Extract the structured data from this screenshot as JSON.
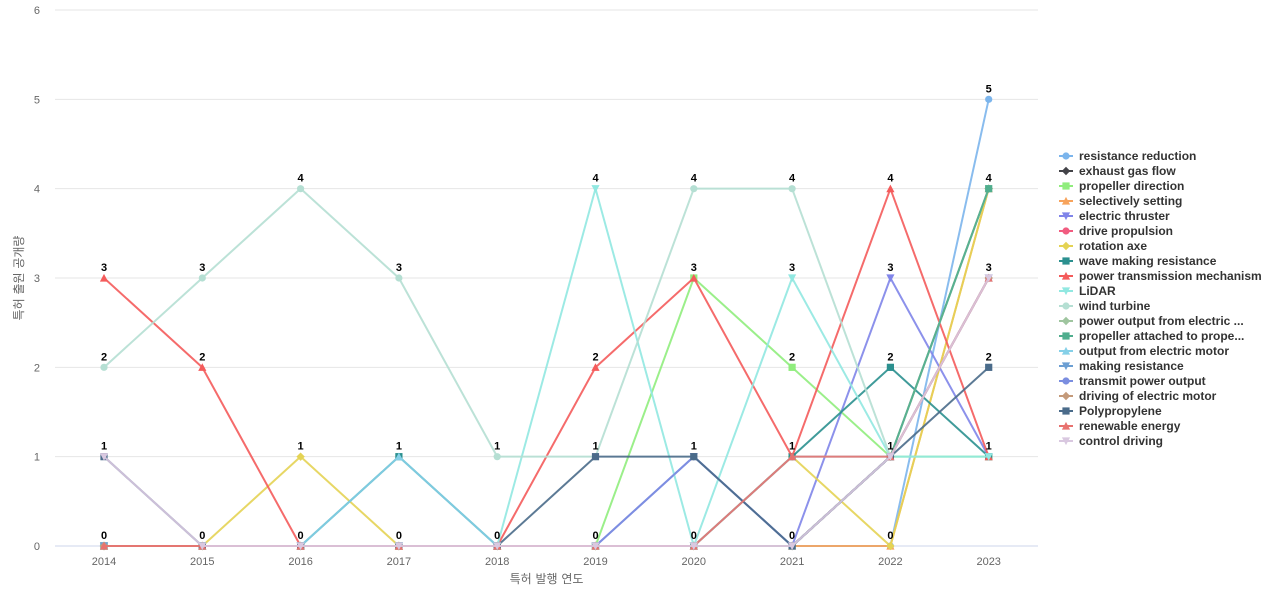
{
  "chart_data": {
    "type": "line",
    "x": [
      "2014",
      "2015",
      "2016",
      "2017",
      "2018",
      "2019",
      "2020",
      "2021",
      "2022",
      "2023"
    ],
    "xlabel": "특허 발행 연도",
    "ylabel": "특허 출원 공개량",
    "ylim": [
      0,
      6
    ],
    "yticks": [
      "0",
      "1",
      "2",
      "3",
      "4",
      "5",
      "6"
    ],
    "grid": true,
    "legend_position": "right",
    "series": [
      {
        "name": "resistance reduction",
        "color": "#7cb5ec",
        "marker": "circle",
        "values": [
          0,
          0,
          0,
          0,
          0,
          0,
          0,
          0,
          0,
          5
        ]
      },
      {
        "name": "exhaust gas flow",
        "color": "#434348",
        "marker": "diamond",
        "values": [
          0,
          0,
          0,
          0,
          0,
          0,
          0,
          0,
          1,
          4
        ]
      },
      {
        "name": "propeller direction",
        "color": "#90ed7d",
        "marker": "square",
        "values": [
          0,
          0,
          0,
          0,
          0,
          0,
          3,
          2,
          1,
          1
        ]
      },
      {
        "name": "selectively setting",
        "color": "#f7a35c",
        "marker": "triangle",
        "values": [
          0,
          0,
          0,
          0,
          0,
          0,
          0,
          0,
          0,
          4
        ]
      },
      {
        "name": "electric thruster",
        "color": "#8085e9",
        "marker": "triangle-down",
        "values": [
          0,
          0,
          0,
          0,
          0,
          0,
          1,
          0,
          3,
          1
        ]
      },
      {
        "name": "drive propulsion",
        "color": "#f15c80",
        "marker": "circle",
        "values": [
          0,
          0,
          0,
          0,
          0,
          0,
          0,
          0,
          1,
          3
        ]
      },
      {
        "name": "rotation axe",
        "color": "#e4d354",
        "marker": "diamond",
        "values": [
          0,
          0,
          1,
          0,
          0,
          0,
          0,
          1,
          0,
          4
        ]
      },
      {
        "name": "wave making resistance",
        "color": "#2b908f",
        "marker": "square",
        "values": [
          0,
          0,
          0,
          1,
          0,
          0,
          0,
          1,
          2,
          1
        ]
      },
      {
        "name": "power transmission mechanism",
        "color": "#f45b5b",
        "marker": "triangle",
        "values": [
          3,
          2,
          0,
          0,
          0,
          2,
          3,
          1,
          4,
          1
        ]
      },
      {
        "name": "LiDAR",
        "color": "#91e8e1",
        "marker": "triangle-down",
        "values": [
          0,
          0,
          0,
          0,
          0,
          4,
          0,
          3,
          1,
          1
        ]
      },
      {
        "name": "wind turbine",
        "color": "#b5dfd3",
        "marker": "circle",
        "values": [
          2,
          3,
          4,
          3,
          1,
          1,
          4,
          4,
          1,
          4
        ]
      },
      {
        "name": "power output from electric ...",
        "color": "#9fc59f",
        "marker": "diamond",
        "values": [
          0,
          0,
          0,
          0,
          0,
          0,
          0,
          0,
          1,
          4
        ]
      },
      {
        "name": "propeller attached to prope...",
        "color": "#50ae8e",
        "marker": "square",
        "values": [
          0,
          0,
          0,
          0,
          0,
          0,
          0,
          0,
          1,
          4
        ]
      },
      {
        "name": "output from electric motor",
        "color": "#85d0e8",
        "marker": "triangle",
        "values": [
          0,
          0,
          0,
          1,
          0,
          0,
          0,
          1,
          1,
          3
        ]
      },
      {
        "name": "making resistance",
        "color": "#6c9fd3",
        "marker": "triangle-down",
        "values": [
          0,
          0,
          0,
          0,
          0,
          0,
          0,
          0,
          1,
          3
        ]
      },
      {
        "name": "transmit power output",
        "color": "#7b8ee0",
        "marker": "circle",
        "values": [
          0,
          0,
          0,
          0,
          0,
          0,
          1,
          0,
          1,
          3
        ]
      },
      {
        "name": "driving of electric motor",
        "color": "#c49a7a",
        "marker": "diamond",
        "values": [
          0,
          0,
          0,
          0,
          0,
          0,
          0,
          0,
          1,
          3
        ]
      },
      {
        "name": "Polypropylene",
        "color": "#4a6b8a",
        "marker": "square",
        "values": [
          1,
          0,
          0,
          0,
          0,
          1,
          1,
          0,
          1,
          2
        ]
      },
      {
        "name": "renewable energy",
        "color": "#e8726f",
        "marker": "triangle",
        "values": [
          0,
          0,
          0,
          0,
          0,
          0,
          0,
          1,
          1,
          3
        ]
      },
      {
        "name": "control driving",
        "color": "#d9c8e0",
        "marker": "triangle-down",
        "values": [
          1,
          0,
          0,
          0,
          0,
          0,
          0,
          0,
          1,
          3
        ]
      }
    ],
    "data_labels": [
      {
        "x": "2014",
        "y": 3,
        "text": "3"
      },
      {
        "x": "2014",
        "y": 2,
        "text": "2"
      },
      {
        "x": "2014",
        "y": 1,
        "text": "1"
      },
      {
        "x": "2014",
        "y": 0,
        "text": "0"
      },
      {
        "x": "2015",
        "y": 3,
        "text": "3"
      },
      {
        "x": "2015",
        "y": 2,
        "text": "2"
      },
      {
        "x": "2015",
        "y": 0,
        "text": "0"
      },
      {
        "x": "2016",
        "y": 4,
        "text": "4"
      },
      {
        "x": "2016",
        "y": 1,
        "text": "1"
      },
      {
        "x": "2016",
        "y": 0,
        "text": "0"
      },
      {
        "x": "2017",
        "y": 3,
        "text": "3"
      },
      {
        "x": "2017",
        "y": 1,
        "text": "1"
      },
      {
        "x": "2017",
        "y": 0,
        "text": "0"
      },
      {
        "x": "2018",
        "y": 1,
        "text": "1"
      },
      {
        "x": "2018",
        "y": 0,
        "text": "0"
      },
      {
        "x": "2019",
        "y": 4,
        "text": "4"
      },
      {
        "x": "2019",
        "y": 2,
        "text": "2"
      },
      {
        "x": "2019",
        "y": 1,
        "text": "1"
      },
      {
        "x": "2019",
        "y": 0,
        "text": "0"
      },
      {
        "x": "2020",
        "y": 4,
        "text": "4"
      },
      {
        "x": "2020",
        "y": 3,
        "text": "3"
      },
      {
        "x": "2020",
        "y": 1,
        "text": "1"
      },
      {
        "x": "2020",
        "y": 0,
        "text": "0"
      },
      {
        "x": "2021",
        "y": 4,
        "text": "4"
      },
      {
        "x": "2021",
        "y": 3,
        "text": "3"
      },
      {
        "x": "2021",
        "y": 2,
        "text": "2"
      },
      {
        "x": "2021",
        "y": 1,
        "text": "1"
      },
      {
        "x": "2021",
        "y": 0,
        "text": "0"
      },
      {
        "x": "2022",
        "y": 4,
        "text": "4"
      },
      {
        "x": "2022",
        "y": 3,
        "text": "3"
      },
      {
        "x": "2022",
        "y": 2,
        "text": "2"
      },
      {
        "x": "2022",
        "y": 1,
        "text": "1"
      },
      {
        "x": "2022",
        "y": 0,
        "text": "0"
      },
      {
        "x": "2023",
        "y": 5,
        "text": "5"
      },
      {
        "x": "2023",
        "y": 4,
        "text": "4"
      },
      {
        "x": "2023",
        "y": 3,
        "text": "3"
      },
      {
        "x": "2023",
        "y": 2,
        "text": "2"
      },
      {
        "x": "2023",
        "y": 1,
        "text": "1"
      }
    ]
  }
}
